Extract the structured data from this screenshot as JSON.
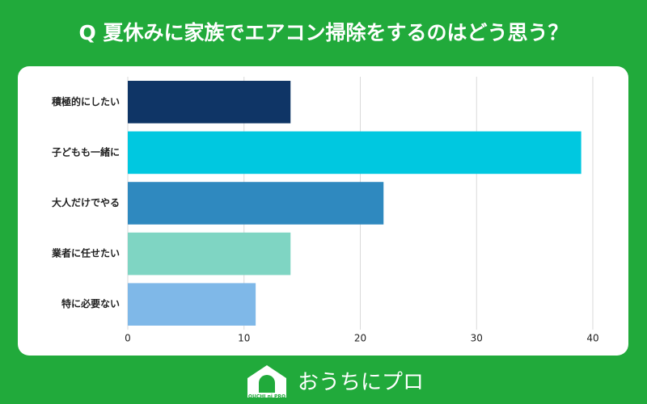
{
  "chart_data": {
    "type": "bar",
    "orientation": "horizontal",
    "title": "Q 夏休みに家族でエアコン掃除をするのはどう思う？",
    "categories": [
      "積極的にしたい",
      "子どもも一緒に",
      "大人だけでやる",
      "業者に任せたい",
      "特に必要ない"
    ],
    "values": [
      14,
      39,
      22,
      14,
      11
    ],
    "colors": [
      "#0f3566",
      "#00c8e0",
      "#2f89bf",
      "#7fd5c3",
      "#7fb8e8"
    ],
    "xlim": [
      0,
      40
    ],
    "xticks": [
      0,
      10,
      20,
      30,
      40
    ],
    "grid": true
  },
  "logo": {
    "text": "おうちにプロ",
    "sub": "OUCHI ni PRO"
  }
}
